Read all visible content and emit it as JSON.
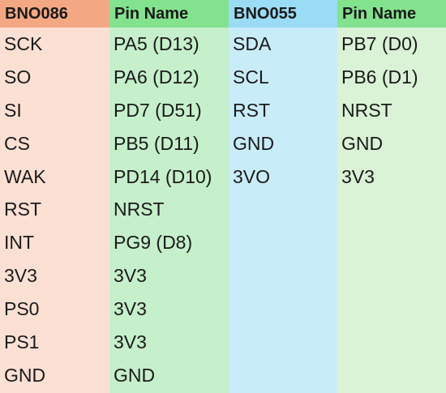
{
  "colors": {
    "bno086_header": "#F3A883",
    "bno086_body": "#FDE0D4",
    "pin_header": "#83E28E",
    "pin_body": "#C6EFCB",
    "bno055_header": "#9ADCF5",
    "bno055_body": "#C9ECF9",
    "pin2_header": "#83E28E",
    "pin2_body": "#DAF2D6"
  },
  "headers": [
    "BNO086",
    "Pin Name",
    "BNO055",
    "Pin Name"
  ],
  "bno086": {
    "pins": [
      "SCK",
      "SO",
      "SI",
      "CS",
      "WAK",
      "RST",
      "INT",
      "3V3",
      "PS0",
      "PS1",
      "GND"
    ],
    "pin_names": [
      "PA5 (D13)",
      "PA6 (D12)",
      "PD7 (D51)",
      "PB5 (D11)",
      "PD14 (D10)",
      "NRST",
      "PG9 (D8)",
      "3V3",
      "3V3",
      "3V3",
      "GND"
    ]
  },
  "bno055": {
    "pins": [
      "SDA",
      "SCL",
      "RST",
      "GND",
      "3VO"
    ],
    "pin_names": [
      "PB7 (D0)",
      "PB6 (D1)",
      "NRST",
      "GND",
      "3V3"
    ]
  }
}
